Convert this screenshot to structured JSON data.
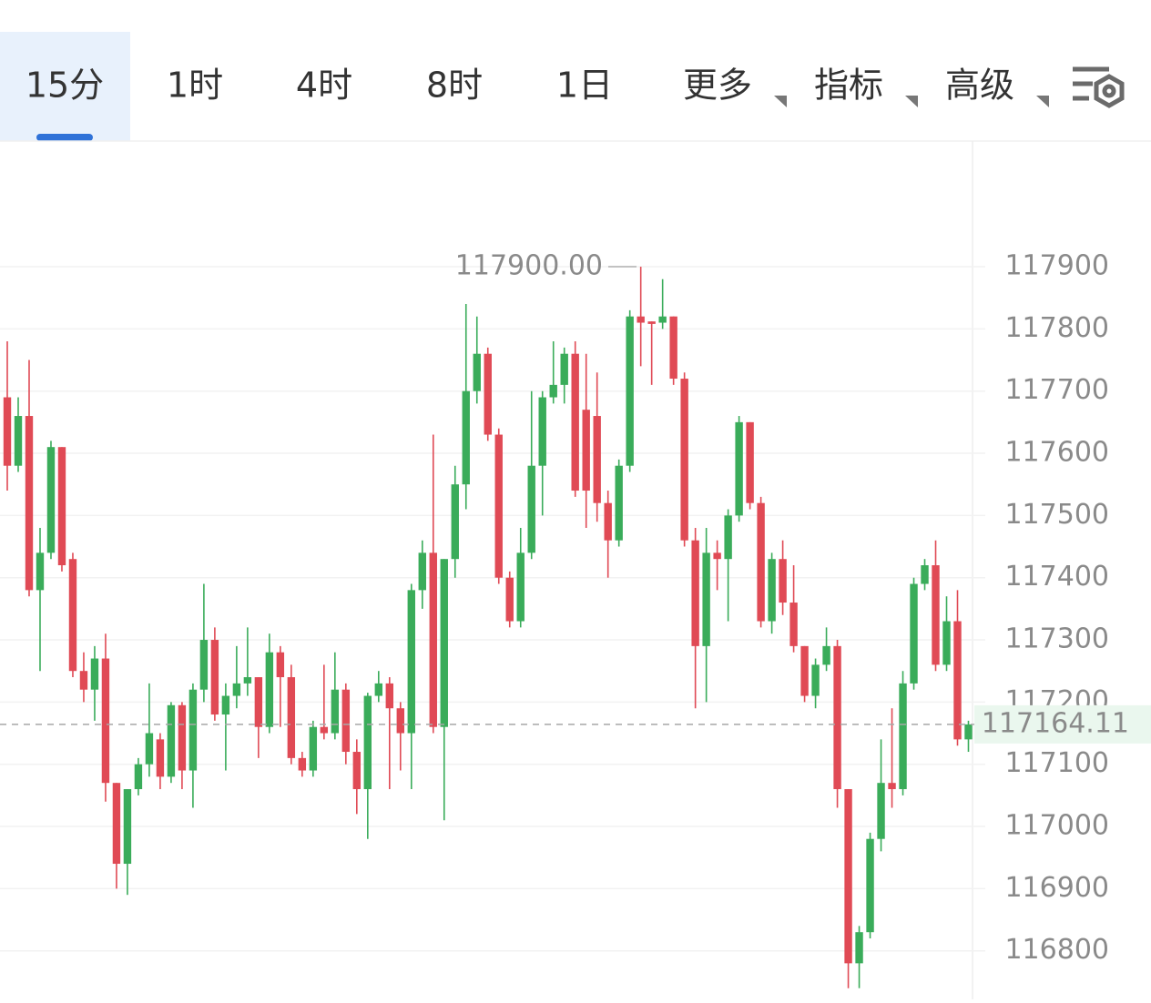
{
  "tabs": [
    "15分",
    "1时",
    "4时",
    "8时",
    "1日",
    "更多",
    "指标",
    "高级"
  ],
  "active_tab": 0,
  "chart_data": {
    "type": "candlestick",
    "up_color": "#3aac5a",
    "down_color": "#e04a55",
    "ylim": [
      116722,
      118102
    ],
    "yticks": [
      116800,
      116900,
      117000,
      117100,
      117200,
      117300,
      117400,
      117500,
      117600,
      117700,
      117800,
      117900
    ],
    "grid": true,
    "last_price": {
      "value": 117164.11,
      "label": "117164.11"
    },
    "max_annotation": {
      "value": 117900,
      "label": "117900.00"
    },
    "ohlc": [
      [
        117690,
        117780,
        117540,
        117580
      ],
      [
        117580,
        117690,
        117570,
        117660
      ],
      [
        117660,
        117750,
        117370,
        117380
      ],
      [
        117380,
        117480,
        117250,
        117440
      ],
      [
        117440,
        117620,
        117430,
        117610
      ],
      [
        117610,
        117610,
        117410,
        117420
      ],
      [
        117430,
        117440,
        117240,
        117250
      ],
      [
        117250,
        117280,
        117200,
        117220
      ],
      [
        117220,
        117290,
        117170,
        117270
      ],
      [
        117270,
        117310,
        117040,
        117070
      ],
      [
        117070,
        117070,
        116900,
        116940
      ],
      [
        116940,
        117060,
        116890,
        117060
      ],
      [
        117060,
        117110,
        117050,
        117100
      ],
      [
        117100,
        117230,
        117080,
        117150
      ],
      [
        117140,
        117150,
        117060,
        117080
      ],
      [
        117080,
        117200,
        117070,
        117195
      ],
      [
        117195,
        117200,
        117060,
        117090
      ],
      [
        117090,
        117230,
        117030,
        117220
      ],
      [
        117220,
        117390,
        117200,
        117300
      ],
      [
        117300,
        117320,
        117170,
        117180
      ],
      [
        117180,
        117230,
        117090,
        117210
      ],
      [
        117210,
        117290,
        117190,
        117230
      ],
      [
        117230,
        117320,
        117210,
        117240
      ],
      [
        117240,
        117240,
        117110,
        117160
      ],
      [
        117160,
        117310,
        117150,
        117280
      ],
      [
        117280,
        117290,
        117160,
        117240
      ],
      [
        117240,
        117260,
        117100,
        117110
      ],
      [
        117110,
        117120,
        117080,
        117090
      ],
      [
        117090,
        117170,
        117080,
        117160
      ],
      [
        117160,
        117260,
        117140,
        117150
      ],
      [
        117150,
        117280,
        117140,
        117220
      ],
      [
        117220,
        117230,
        117100,
        117120
      ],
      [
        117120,
        117140,
        117020,
        117060
      ],
      [
        117060,
        117215,
        116980,
        117210
      ],
      [
        117210,
        117250,
        117200,
        117230
      ],
      [
        117230,
        117240,
        117060,
        117190
      ],
      [
        117190,
        117200,
        117090,
        117150
      ],
      [
        117150,
        117390,
        117060,
        117380
      ],
      [
        117380,
        117460,
        117350,
        117440
      ],
      [
        117440,
        117630,
        117150,
        117160
      ],
      [
        117160,
        117430,
        117010,
        117430
      ],
      [
        117430,
        117580,
        117400,
        117550
      ],
      [
        117550,
        117840,
        117510,
        117700
      ],
      [
        117700,
        117820,
        117680,
        117760
      ],
      [
        117760,
        117770,
        117620,
        117630
      ],
      [
        117630,
        117640,
        117390,
        117400
      ],
      [
        117400,
        117410,
        117320,
        117330
      ],
      [
        117330,
        117480,
        117320,
        117440
      ],
      [
        117440,
        117700,
        117430,
        117580
      ],
      [
        117580,
        117700,
        117500,
        117690
      ],
      [
        117690,
        117780,
        117680,
        117710
      ],
      [
        117710,
        117770,
        117680,
        117760
      ],
      [
        117760,
        117780,
        117530,
        117540
      ],
      [
        117670,
        117760,
        117480,
        117540
      ],
      [
        117660,
        117730,
        117490,
        117520
      ],
      [
        117520,
        117540,
        117400,
        117460
      ],
      [
        117460,
        117590,
        117450,
        117580
      ],
      [
        117580,
        117830,
        117570,
        117820
      ],
      [
        117820,
        117900,
        117740,
        117810
      ],
      [
        117812,
        117812,
        117710,
        117808
      ],
      [
        117810,
        117880,
        117800,
        117820
      ],
      [
        117820,
        117820,
        117710,
        117720
      ],
      [
        117720,
        117730,
        117450,
        117460
      ],
      [
        117460,
        117480,
        117190,
        117290
      ],
      [
        117290,
        117480,
        117200,
        117440
      ],
      [
        117440,
        117460,
        117380,
        117430
      ],
      [
        117430,
        117510,
        117330,
        117500
      ],
      [
        117500,
        117660,
        117490,
        117650
      ],
      [
        117650,
        117650,
        117510,
        117520
      ],
      [
        117520,
        117530,
        117320,
        117330
      ],
      [
        117330,
        117440,
        117310,
        117430
      ],
      [
        117430,
        117460,
        117340,
        117360
      ],
      [
        117360,
        117420,
        117280,
        117290
      ],
      [
        117290,
        117290,
        117200,
        117210
      ],
      [
        117210,
        117270,
        117190,
        117260
      ],
      [
        117260,
        117320,
        117250,
        117290
      ],
      [
        117290,
        117300,
        117030,
        117060
      ],
      [
        117060,
        117060,
        116740,
        116780
      ],
      [
        116780,
        116840,
        116740,
        116830
      ],
      [
        116830,
        116990,
        116820,
        116980
      ],
      [
        116980,
        117140,
        116960,
        117070
      ],
      [
        117070,
        117190,
        117030,
        117060
      ],
      [
        117060,
        117250,
        117050,
        117230
      ],
      [
        117230,
        117400,
        117220,
        117390
      ],
      [
        117390,
        117430,
        117380,
        117420
      ],
      [
        117420,
        117460,
        117250,
        117260
      ],
      [
        117260,
        117370,
        117250,
        117330
      ],
      [
        117330,
        117380,
        117130,
        117140
      ],
      [
        117140,
        117170,
        117120,
        117164.11
      ]
    ]
  }
}
